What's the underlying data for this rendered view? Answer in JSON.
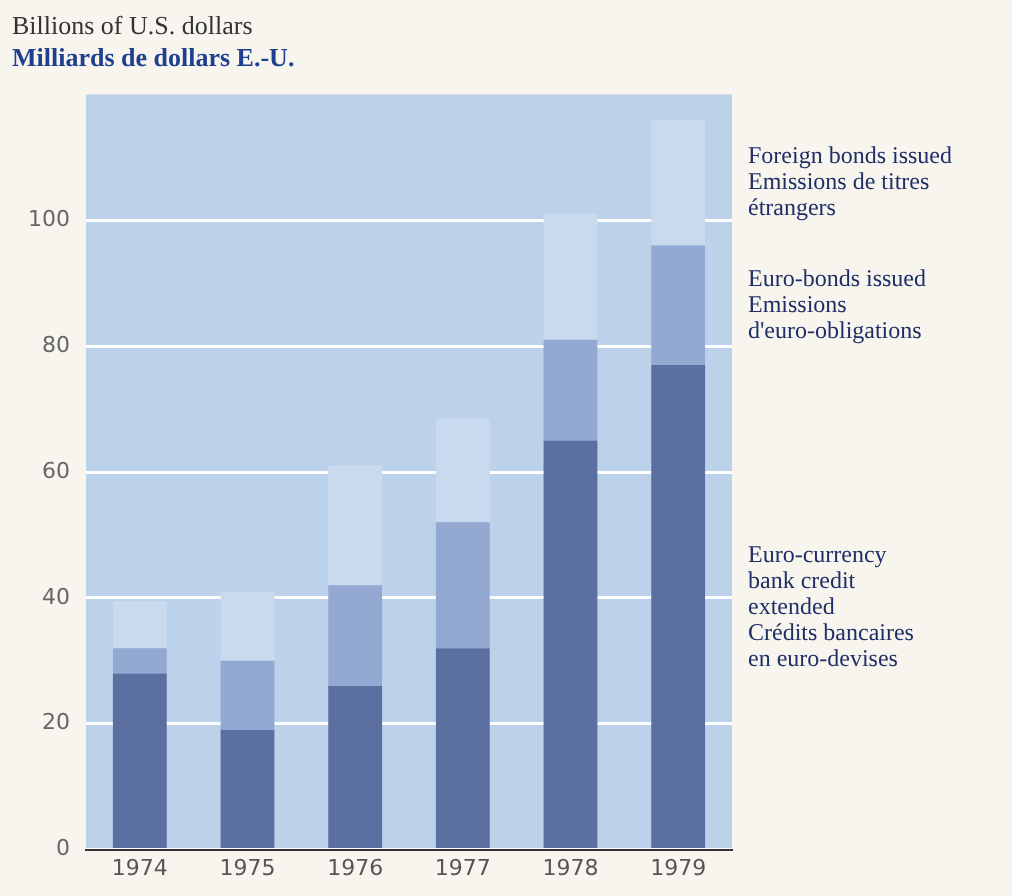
{
  "chart_data": {
    "type": "bar",
    "title": "Billions of U.S. dollars",
    "subtitle": "Milliards de dollars E.-U.",
    "categories": [
      "1974",
      "1975",
      "1976",
      "1977",
      "1978",
      "1979"
    ],
    "stacked": true,
    "series": [
      {
        "name": "Euro-currency\nbank credit\nextended\nCrédits bancaires\nen euro-devises",
        "color": "#5b70a0",
        "values": [
          28,
          19,
          26,
          32,
          65,
          77
        ]
      },
      {
        "name": "Euro-bonds issued\nEmissions\nd'euro-obligations",
        "color": "#93a9d2",
        "values": [
          4,
          11,
          16,
          20,
          16,
          19
        ]
      },
      {
        "name": "Foreign bonds issued\nEmissions de titres\nétrangers",
        "color": "#c9d9ee",
        "values": [
          7.5,
          11,
          19,
          16.5,
          20,
          20
        ]
      }
    ],
    "ylim": [
      0,
      120
    ],
    "yticks": [
      0,
      20,
      40,
      60,
      80,
      100
    ],
    "grid": "y",
    "legend": "right"
  }
}
